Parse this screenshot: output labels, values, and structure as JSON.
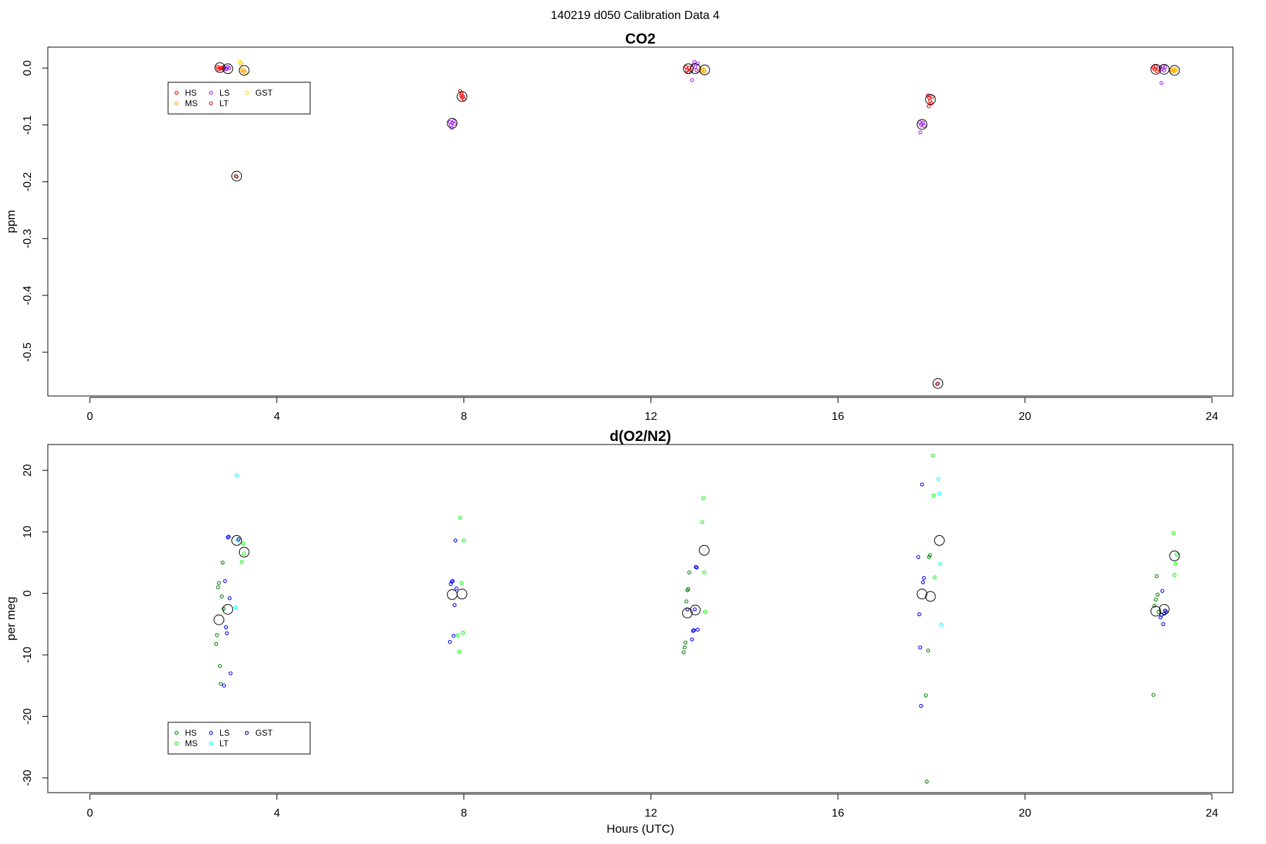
{
  "page": {
    "suptitle": "140219   d050   Calibration Data 4"
  },
  "colors": {
    "HS_co2": "#ff0000",
    "MS_co2": "#ffa500",
    "LS_co2": "#a020f0",
    "LT_co2": "#a52a2a",
    "GST_co2": "#ffd700",
    "HS_o2": "#008000",
    "MS_o2": "#00ff00",
    "LS_o2": "#0000ff",
    "LT_o2": "#00ffff",
    "GST_o2": "#00008b",
    "mean": "#000000"
  },
  "chart_data": [
    {
      "type": "scatter",
      "title": "CO2",
      "xlabel": "",
      "ylabel": "ppm",
      "xlim": [
        -0.9,
        24.45
      ],
      "ylim": [
        -0.577,
        0.037
      ],
      "xticks": [
        0,
        4,
        8,
        12,
        16,
        20,
        24
      ],
      "xtick_labels": [
        "0",
        "4",
        "8",
        "12",
        "16",
        "20",
        "24"
      ],
      "yticks": [
        0.0,
        -0.1,
        -0.2,
        -0.3,
        -0.4,
        -0.5
      ],
      "ytick_labels": [
        "0.0",
        "-0.1",
        "-0.2",
        "-0.3",
        "-0.4",
        "-0.5"
      ],
      "legend": {
        "position": "top-left",
        "entries": [
          {
            "name": "HS",
            "color": "#ff0000"
          },
          {
            "name": "MS",
            "color": "#ffa500"
          },
          {
            "name": "LS",
            "color": "#a020f0"
          },
          {
            "name": "LT",
            "color": "#a52a2a"
          },
          {
            "name": "GST",
            "color": "#ffd700"
          }
        ]
      },
      "series": [
        {
          "name": "HS",
          "color": "#ff0000",
          "x": [
            2.73,
            2.75,
            2.78,
            2.8,
            2.83,
            2.86,
            7.92,
            7.94,
            7.96,
            7.98,
            8.0,
            7.95,
            12.75,
            12.77,
            12.8,
            12.82,
            12.85,
            17.93,
            17.95,
            17.97,
            18.0,
            18.02,
            17.94,
            22.75,
            22.77,
            22.8,
            22.82,
            22.85
          ],
          "y": [
            0.002,
            -0.002,
            0.001,
            -0.001,
            0.0,
            0.002,
            -0.04,
            -0.048,
            -0.052,
            -0.05,
            -0.055,
            -0.045,
            0.002,
            -0.004,
            -0.007,
            0.001,
            -0.003,
            -0.048,
            -0.052,
            -0.058,
            -0.062,
            -0.05,
            -0.067,
            0.001,
            -0.002,
            0.003,
            -0.005,
            -0.001
          ]
        },
        {
          "name": "MS",
          "color": "#ffa500",
          "x": [
            3.23,
            3.25,
            3.28,
            3.3,
            3.33,
            13.05,
            13.08,
            13.1,
            13.13,
            13.15,
            23.13,
            23.15,
            23.18,
            23.2,
            23.23
          ],
          "y": [
            0.008,
            -0.003,
            -0.006,
            -0.004,
            -0.008,
            -0.003,
            -0.005,
            -0.002,
            -0.004,
            -0.006,
            -0.003,
            -0.006,
            -0.002,
            -0.005,
            -0.004
          ]
        },
        {
          "name": "LS",
          "color": "#a020f0",
          "x": [
            2.88,
            2.9,
            2.93,
            2.95,
            2.98,
            7.7,
            7.72,
            7.75,
            7.78,
            7.8,
            7.74,
            12.9,
            12.93,
            12.95,
            12.98,
            13.0,
            12.88,
            17.75,
            17.78,
            17.8,
            17.82,
            17.85,
            17.76,
            22.9,
            22.93,
            22.95,
            22.98,
            23.0,
            22.92
          ],
          "y": [
            0.001,
            -0.002,
            -0.001,
            0.002,
            0.0,
            -0.095,
            -0.1,
            -0.096,
            -0.093,
            -0.098,
            -0.105,
            0.005,
            0.011,
            0.002,
            -0.004,
            0.008,
            -0.021,
            -0.095,
            -0.1,
            -0.098,
            -0.096,
            -0.102,
            -0.113,
            0.001,
            -0.002,
            0.003,
            -0.004,
            0.002,
            -0.026
          ]
        },
        {
          "name": "LT",
          "color": "#a52a2a",
          "x": [
            3.12,
            3.14,
            18.12,
            18.14
          ],
          "y": [
            -0.19,
            -0.191,
            -0.556,
            -0.555
          ]
        },
        {
          "name": "GST",
          "color": "#ffd700",
          "x": [
            3.2,
            13.12,
            23.22
          ],
          "y": [
            0.012,
            -0.001,
            -0.002
          ]
        },
        {
          "name": "",
          "color": "#000000",
          "marker": "large-circle",
          "x": [
            2.78,
            2.95,
            3.14,
            3.3,
            7.75,
            7.96,
            12.8,
            12.95,
            13.15,
            17.8,
            17.98,
            18.14,
            22.8,
            22.98,
            23.2
          ],
          "y": [
            0.001,
            -0.001,
            -0.19,
            -0.004,
            -0.097,
            -0.05,
            -0.001,
            -0.001,
            -0.003,
            -0.099,
            -0.055,
            -0.555,
            -0.002,
            -0.002,
            -0.004
          ]
        }
      ]
    },
    {
      "type": "scatter",
      "title": "d(O2/N2)",
      "xlabel": "Hours (UTC)",
      "ylabel": "per meg",
      "xlim": [
        -0.9,
        24.45
      ],
      "ylim": [
        -32.4,
        24.2
      ],
      "xticks": [
        0,
        4,
        8,
        12,
        16,
        20,
        24
      ],
      "xtick_labels": [
        "0",
        "4",
        "8",
        "12",
        "16",
        "20",
        "24"
      ],
      "yticks": [
        20,
        10,
        0,
        -10,
        -20,
        -30
      ],
      "ytick_labels": [
        "20",
        "10",
        "0",
        "-10",
        "-20",
        "-30"
      ],
      "legend": {
        "position": "bottom-left",
        "entries": [
          {
            "name": "HS",
            "color": "#008000"
          },
          {
            "name": "MS",
            "color": "#00ff00"
          },
          {
            "name": "LS",
            "color": "#0000ff"
          },
          {
            "name": "LT",
            "color": "#00ffff"
          },
          {
            "name": "GST",
            "color": "#00008b"
          }
        ]
      },
      "series": [
        {
          "name": "HS",
          "color": "#008000",
          "x": [
            2.7,
            2.72,
            2.74,
            2.76,
            2.78,
            2.8,
            2.82,
            2.84,
            2.86,
            12.7,
            12.72,
            12.74,
            12.76,
            12.78,
            12.8,
            12.82,
            17.88,
            17.9,
            17.93,
            17.95,
            17.97,
            22.75,
            22.77,
            22.8,
            22.82,
            22.84,
            22.86
          ],
          "y": [
            -8.2,
            -6.8,
            1.0,
            1.7,
            -11.8,
            -14.7,
            -0.5,
            5.0,
            -2.5,
            -9.6,
            -8.8,
            -8.0,
            -1.3,
            0.5,
            0.7,
            3.4,
            -16.6,
            -30.6,
            -9.3,
            5.9,
            6.2,
            -16.5,
            -2.0,
            -1.0,
            2.8,
            -0.2,
            -3.0
          ]
        },
        {
          "name": "MS",
          "color": "#00ff00",
          "x": [
            3.25,
            3.28,
            3.3,
            7.87,
            7.9,
            7.92,
            7.95,
            7.98,
            8.0,
            13.1,
            13.12,
            13.14,
            13.16,
            18.03,
            18.05,
            18.07,
            23.18,
            23.2,
            23.22,
            23.25
          ],
          "y": [
            5.1,
            8.1,
            6.5,
            -6.8,
            -9.5,
            12.3,
            1.7,
            -6.4,
            8.6,
            11.6,
            15.5,
            3.4,
            -3.0,
            22.4,
            15.9,
            2.6,
            9.8,
            3.0,
            4.8,
            6.3
          ]
        },
        {
          "name": "LS",
          "color": "#0000ff",
          "x": [
            2.87,
            2.89,
            2.91,
            2.93,
            2.95,
            2.97,
            2.99,
            3.01,
            7.7,
            7.72,
            7.74,
            7.76,
            7.78,
            7.8,
            7.82,
            7.84,
            12.88,
            12.9,
            12.92,
            12.94,
            12.96,
            12.98,
            13.0,
            17.72,
            17.74,
            17.76,
            17.78,
            17.8,
            17.82,
            17.84,
            22.9,
            22.92,
            22.94,
            22.96,
            22.98,
            23.0
          ],
          "y": [
            -15.0,
            2.0,
            -5.5,
            -6.5,
            9.1,
            9.2,
            -0.8,
            -13.0,
            -7.9,
            1.5,
            1.9,
            2.0,
            -6.9,
            -1.9,
            8.6,
            0.8,
            -7.5,
            -6.1,
            -6.0,
            -2.6,
            4.3,
            4.2,
            -5.9,
            5.9,
            -3.4,
            -8.8,
            -18.3,
            17.7,
            1.8,
            2.5,
            -3.9,
            -3.5,
            0.4,
            -5.0,
            -3.3,
            -2.8
          ]
        },
        {
          "name": "LT",
          "color": "#00ffff",
          "x": [
            3.12,
            3.14,
            3.16,
            18.15,
            18.17,
            18.19,
            18.21
          ],
          "y": [
            -2.3,
            19.2,
            8.6,
            18.6,
            16.2,
            4.8,
            -5.1
          ]
        },
        {
          "name": "GST",
          "color": "#00008b",
          "x": [
            3.18,
            12.78,
            23.02
          ],
          "y": [
            8.8,
            -2.6,
            -3.0
          ]
        },
        {
          "name": "",
          "color": "#000000",
          "marker": "large-circle",
          "x": [
            2.76,
            2.95,
            3.14,
            3.3,
            7.75,
            7.96,
            12.78,
            12.95,
            13.14,
            17.8,
            17.98,
            18.17,
            22.8,
            22.98,
            23.2
          ],
          "y": [
            -4.3,
            -2.6,
            8.6,
            6.7,
            -0.2,
            -0.1,
            -3.2,
            -2.7,
            7.0,
            -0.1,
            -0.5,
            8.6,
            -2.9,
            -2.6,
            6.1
          ]
        }
      ]
    }
  ]
}
